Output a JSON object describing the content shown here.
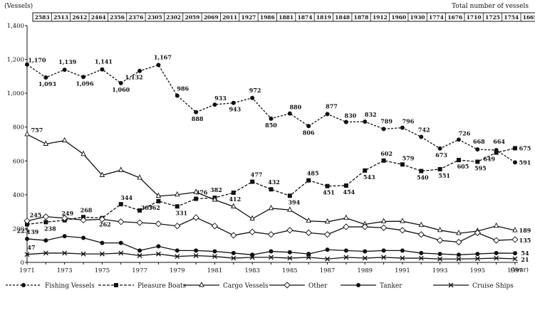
{
  "chart_data": {
    "type": "line",
    "ylabel": "(Vessels)",
    "xunit": "(Year)",
    "ylim": [
      0,
      1400
    ],
    "yticks": [
      0,
      200,
      400,
      600,
      800,
      1000,
      1200,
      1400
    ],
    "ytick_labels": [
      "0",
      "200",
      "400",
      "600",
      "800",
      "1,000",
      "1,200",
      "1,400"
    ],
    "x": [
      1971,
      1972,
      1973,
      1974,
      1975,
      1976,
      1977,
      1978,
      1979,
      1980,
      1981,
      1982,
      1983,
      1984,
      1985,
      1986,
      1987,
      1988,
      1989,
      1990,
      1991,
      1992,
      1993,
      1994,
      1995,
      1996,
      1997
    ],
    "xticks": [
      1971,
      1973,
      1975,
      1977,
      1979,
      1981,
      1983,
      1985,
      1987,
      1989,
      1991,
      1993,
      1995,
      1997
    ],
    "totals_title": "Total number of vessels",
    "totals": [
      "2583",
      "2513",
      "2612",
      "2464",
      "2356",
      "2376",
      "2305",
      "2302",
      "2059",
      "2069",
      "2011",
      "1927",
      "1986",
      "1881",
      "1874",
      "1819",
      "1848",
      "1878",
      "1912",
      "1960",
      "1930",
      "1774",
      "1676",
      "1710",
      "1725",
      "1754",
      "1665"
    ],
    "grid": false,
    "legend_position": "bottom",
    "series": [
      {
        "name": "Fishing Vessels",
        "marker": "circle",
        "dash": "3,2",
        "values": [
          1170,
          1093,
          1139,
          1096,
          1141,
          1060,
          1132,
          1167,
          986,
          888,
          933,
          943,
          972,
          850,
          880,
          806,
          877,
          830,
          832,
          789,
          796,
          742,
          673,
          726,
          668,
          664,
          591
        ],
        "labels": [
          [
            1971,
            "1,170"
          ],
          [
            1972,
            "1,093"
          ],
          [
            1973,
            "1,139"
          ],
          [
            1974,
            "1,096"
          ],
          [
            1975,
            "1,141"
          ],
          [
            1976,
            "1,060"
          ],
          [
            1977,
            "1,132"
          ],
          [
            1978,
            "1,167"
          ],
          [
            1979,
            "986"
          ],
          [
            1980,
            "888"
          ],
          [
            1981,
            "933"
          ],
          [
            1982,
            "943"
          ],
          [
            1983,
            "972"
          ],
          [
            1984,
            "850"
          ],
          [
            1985,
            "880"
          ],
          [
            1986,
            "806"
          ],
          [
            1987,
            "877"
          ],
          [
            1988,
            "830"
          ],
          [
            1989,
            "832"
          ],
          [
            1990,
            "789"
          ],
          [
            1991,
            "796"
          ],
          [
            1992,
            "742"
          ],
          [
            1993,
            "673"
          ],
          [
            1994,
            "726"
          ],
          [
            1995,
            "668"
          ],
          [
            1996,
            "664"
          ],
          [
            1997,
            "591"
          ]
        ]
      },
      {
        "name": "Pleasure Boats",
        "marker": "square",
        "dash": "4,2",
        "values": [
          225,
          238,
          249,
          268,
          262,
          344,
          307,
          362,
          331,
          376,
          382,
          412,
          477,
          432,
          394,
          485,
          451,
          454,
          543,
          602,
          579,
          540,
          551,
          605,
          595,
          649,
          675
        ],
        "labels": [
          [
            1971,
            "225"
          ],
          [
            1972,
            "238"
          ],
          [
            1973,
            "249"
          ],
          [
            1974,
            "268"
          ],
          [
            1975,
            "262"
          ],
          [
            1976,
            "344"
          ],
          [
            1977,
            "307"
          ],
          [
            1978,
            "362"
          ],
          [
            1979,
            "331"
          ],
          [
            1980,
            "376"
          ],
          [
            1981,
            "382"
          ],
          [
            1982,
            "412"
          ],
          [
            1983,
            "477"
          ],
          [
            1984,
            "432"
          ],
          [
            1985,
            "394"
          ],
          [
            1986,
            "485"
          ],
          [
            1987,
            "451"
          ],
          [
            1988,
            "454"
          ],
          [
            1989,
            "543"
          ],
          [
            1990,
            "602"
          ],
          [
            1991,
            "579"
          ],
          [
            1992,
            "540"
          ],
          [
            1993,
            "551"
          ],
          [
            1994,
            "605"
          ],
          [
            1995,
            "595"
          ],
          [
            1996,
            "649"
          ],
          [
            1997,
            "675"
          ]
        ]
      },
      {
        "name": "Cargo Vessels",
        "marker": "triangle",
        "dash": "",
        "values": [
          757,
          700,
          720,
          640,
          515,
          545,
          500,
          392,
          400,
          415,
          370,
          330,
          258,
          320,
          310,
          245,
          240,
          262,
          225,
          242,
          243,
          220,
          190,
          172,
          185,
          215,
          189
        ],
        "labels": [
          [
            1971,
            "757"
          ],
          [
            1997,
            "189"
          ]
        ]
      },
      {
        "name": "Other",
        "marker": "diamond",
        "dash": "",
        "values": [
          245,
          270,
          262,
          250,
          255,
          240,
          235,
          228,
          215,
          265,
          215,
          160,
          180,
          165,
          190,
          175,
          165,
          210,
          210,
          205,
          190,
          165,
          130,
          120,
          175,
          130,
          135
        ],
        "labels": [
          [
            1971,
            "245"
          ],
          [
            1997,
            "135"
          ]
        ]
      },
      {
        "name": "Tanker",
        "marker": "circle",
        "dash": "",
        "values": [
          139,
          130,
          155,
          145,
          115,
          115,
          70,
          95,
          70,
          70,
          65,
          55,
          45,
          65,
          60,
          50,
          75,
          70,
          65,
          70,
          70,
          55,
          50,
          45,
          50,
          55,
          54
        ],
        "labels": [
          [
            1971,
            "139"
          ],
          [
            1997,
            "54"
          ]
        ]
      },
      {
        "name": "Cruise Ships",
        "marker": "x",
        "dash": "",
        "values": [
          47,
          55,
          55,
          50,
          50,
          55,
          40,
          50,
          35,
          40,
          35,
          25,
          30,
          30,
          25,
          30,
          20,
          30,
          25,
          30,
          25,
          25,
          20,
          20,
          22,
          25,
          21
        ],
        "labels": [
          [
            1971,
            "47"
          ],
          [
            1997,
            "21"
          ]
        ]
      }
    ]
  }
}
